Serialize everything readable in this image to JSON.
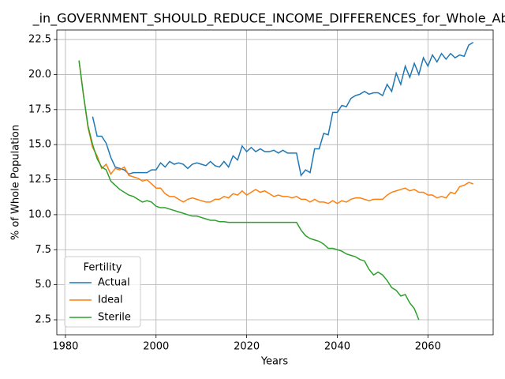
{
  "chart_data": {
    "type": "line",
    "title": "_in_GOVERNMENT_SHOULD_REDUCE_INCOME_DIFFERENCES_for_Whole_Abo",
    "x_label": "Years",
    "y_label": "% of Whole Population",
    "legend_title": "Fertility",
    "legend": "lower left",
    "grid": true,
    "x": [
      1983,
      1984,
      1985,
      1986,
      1987,
      1988,
      1989,
      1990,
      1991,
      1992,
      1993,
      1994,
      1995,
      1996,
      1997,
      1998,
      1999,
      2000,
      2001,
      2002,
      2003,
      2004,
      2005,
      2006,
      2007,
      2008,
      2009,
      2010,
      2011,
      2012,
      2013,
      2014,
      2015,
      2016,
      2017,
      2018,
      2019,
      2020,
      2021,
      2022,
      2023,
      2024,
      2025,
      2026,
      2027,
      2028,
      2029,
      2030,
      2031,
      2032,
      2033,
      2034,
      2035,
      2036,
      2037,
      2038,
      2039,
      2040,
      2041,
      2042,
      2043,
      2044,
      2045,
      2046,
      2047,
      2048,
      2049,
      2050,
      2051,
      2052,
      2053,
      2054,
      2055,
      2056,
      2057,
      2058,
      2059,
      2060,
      2061,
      2062,
      2063,
      2064,
      2065,
      2066,
      2067,
      2068,
      2069,
      2070
    ],
    "series": [
      {
        "name": "Actual",
        "color": "#1f77b4",
        "values": [
          null,
          null,
          null,
          17.0,
          15.6,
          15.6,
          15.1,
          14.1,
          13.4,
          13.3,
          13.2,
          12.9,
          13.0,
          13.0,
          13.0,
          13.0,
          13.2,
          13.2,
          13.7,
          13.4,
          13.8,
          13.6,
          13.7,
          13.6,
          13.3,
          13.6,
          13.7,
          13.6,
          13.5,
          13.8,
          13.5,
          13.4,
          13.8,
          13.4,
          14.2,
          13.9,
          14.9,
          14.5,
          14.8,
          14.5,
          14.7,
          14.5,
          14.5,
          14.6,
          14.4,
          14.6,
          14.4,
          14.4,
          14.4,
          12.8,
          13.2,
          13.0,
          14.7,
          14.7,
          15.8,
          15.7,
          17.3,
          17.3,
          17.8,
          17.7,
          18.3,
          18.5,
          18.6,
          18.8,
          18.6,
          18.7,
          18.7,
          18.5,
          19.3,
          18.8,
          20.1,
          19.3,
          20.6,
          19.8,
          20.8,
          20.0,
          21.2,
          20.6,
          21.4,
          20.9,
          21.5,
          21.1,
          21.5,
          21.2,
          21.4,
          21.3,
          22.1,
          22.3
        ]
      },
      {
        "name": "Ideal",
        "color": "#ff7f0e",
        "values": [
          21.0,
          18.5,
          16.2,
          14.8,
          14.2,
          13.3,
          13.6,
          12.9,
          13.3,
          13.2,
          13.4,
          12.8,
          12.7,
          12.6,
          12.4,
          12.5,
          12.2,
          11.9,
          11.9,
          11.5,
          11.3,
          11.3,
          11.1,
          10.9,
          11.1,
          11.2,
          11.1,
          11.0,
          10.9,
          10.9,
          11.1,
          11.1,
          11.3,
          11.2,
          11.5,
          11.4,
          11.7,
          11.4,
          11.6,
          11.8,
          11.6,
          11.7,
          11.5,
          11.3,
          11.4,
          11.3,
          11.3,
          11.2,
          11.3,
          11.1,
          11.1,
          10.9,
          11.1,
          10.9,
          10.9,
          10.8,
          11.0,
          10.8,
          11.0,
          10.9,
          11.1,
          11.2,
          11.2,
          11.1,
          11.0,
          11.1,
          11.1,
          11.1,
          11.4,
          11.6,
          11.7,
          11.8,
          11.9,
          11.7,
          11.8,
          11.6,
          11.6,
          11.4,
          11.4,
          11.2,
          11.3,
          11.2,
          11.6,
          11.5,
          12.0,
          12.1,
          12.3,
          12.2
        ]
      },
      {
        "name": "Sterile",
        "color": "#2ca02c",
        "values": [
          21.0,
          18.5,
          16.3,
          15.0,
          14.0,
          13.4,
          13.2,
          12.4,
          12.1,
          11.8,
          11.6,
          11.4,
          11.3,
          11.1,
          10.9,
          11.0,
          10.9,
          10.6,
          10.5,
          10.5,
          10.4,
          10.3,
          10.2,
          10.1,
          10.0,
          9.9,
          9.9,
          9.8,
          9.7,
          9.6,
          9.6,
          9.5,
          9.5,
          9.45,
          9.45,
          9.45,
          9.45,
          9.45,
          9.45,
          9.45,
          9.45,
          9.45,
          9.45,
          9.45,
          9.45,
          9.45,
          9.45,
          9.45,
          9.45,
          8.9,
          8.5,
          8.3,
          8.2,
          8.1,
          7.9,
          7.6,
          7.6,
          7.5,
          7.4,
          7.2,
          7.1,
          7.0,
          6.8,
          6.7,
          6.1,
          5.7,
          5.9,
          5.7,
          5.3,
          4.8,
          4.6,
          4.2,
          4.3,
          3.7,
          3.3,
          2.5,
          null,
          null,
          null,
          null,
          null,
          null,
          null,
          null,
          null,
          null,
          null,
          null
        ]
      }
    ],
    "xlim": [
      1978.1,
      2074.4
    ],
    "xticks": [
      1980,
      2000,
      2020,
      2040,
      2060
    ],
    "ylim": [
      1.43,
      23.18
    ],
    "yticks": [
      2.5,
      {
        "value": 5,
        "label": "5.0"
      },
      7.5,
      {
        "value": 10,
        "label": "10.0"
      },
      12.5,
      {
        "value": 15,
        "label": "15.0"
      },
      17.5,
      {
        "value": 20,
        "label": "20.0"
      },
      22.5
    ]
  }
}
